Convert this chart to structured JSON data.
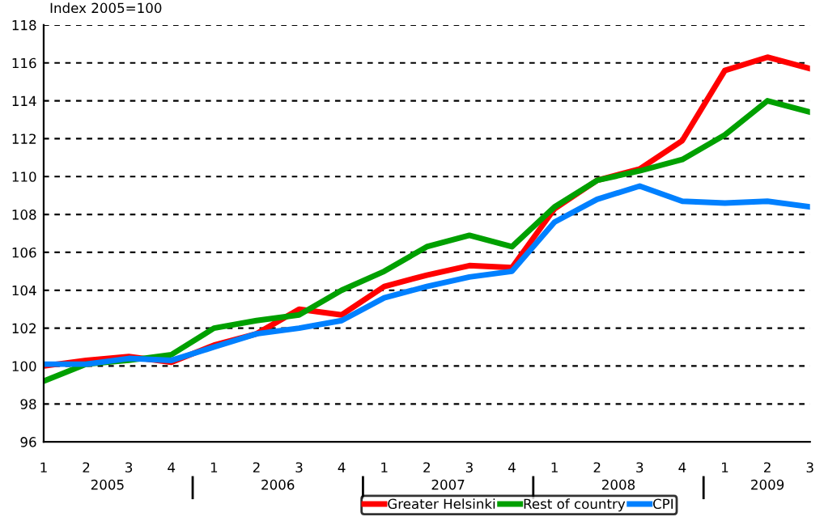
{
  "chart_data": {
    "type": "line",
    "ylabel": "Index 2005=100",
    "categories": [
      "1",
      "2",
      "3",
      "4",
      "1",
      "2",
      "3",
      "4",
      "1",
      "2",
      "3",
      "4",
      "1",
      "2",
      "3",
      "4",
      "1",
      "2",
      "3"
    ],
    "annotations": [
      "2005",
      "2006",
      "2007",
      "2008",
      "2009"
    ],
    "series": [
      {
        "name": "Greater Helsinki",
        "color": "#ff0000",
        "values": [
          100.0,
          100.3,
          100.5,
          100.2,
          101.1,
          101.7,
          103.0,
          102.7,
          104.2,
          104.8,
          105.3,
          105.2,
          108.3,
          109.8,
          110.4,
          111.9,
          115.6,
          116.3,
          115.7
        ]
      },
      {
        "name": "Rest of country",
        "color": "#00a000",
        "values": [
          99.2,
          100.1,
          100.3,
          100.6,
          102.0,
          102.4,
          102.7,
          104.0,
          105.0,
          106.3,
          106.9,
          106.3,
          108.4,
          109.8,
          110.3,
          110.9,
          112.2,
          114.0,
          113.4
        ]
      },
      {
        "name": "CPI",
        "color": "#0080ff",
        "values": [
          100.1,
          100.1,
          100.4,
          100.3,
          101.0,
          101.7,
          102.0,
          102.4,
          103.6,
          104.2,
          104.7,
          105.0,
          107.6,
          108.8,
          109.5,
          108.7,
          108.6,
          108.7,
          108.4
        ]
      }
    ],
    "ylim": [
      96,
      118
    ],
    "yticks": [
      96,
      98,
      100,
      102,
      104,
      106,
      108,
      110,
      112,
      114,
      116,
      118
    ],
    "grid": "y",
    "legend": "bottom",
    "marker": "none",
    "line_style": "solid"
  }
}
